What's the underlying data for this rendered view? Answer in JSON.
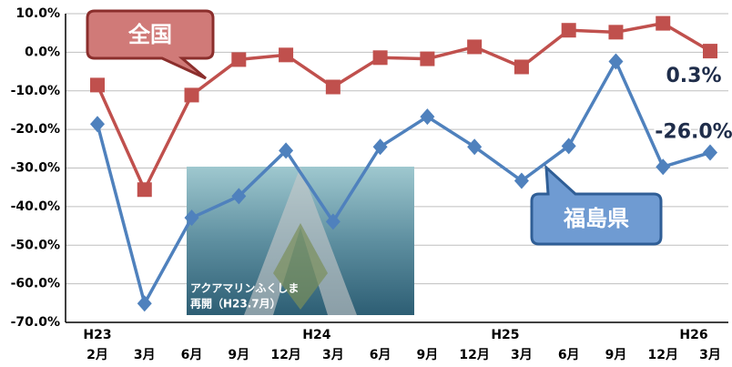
{
  "chart_data": {
    "type": "line",
    "categories": [
      "2月",
      "3月",
      "6月",
      "9月",
      "12月",
      "3月",
      "6月",
      "9月",
      "12月",
      "3月",
      "6月",
      "9月",
      "12月",
      "3月"
    ],
    "year_labels": [
      "H23",
      null,
      null,
      null,
      null,
      "H24",
      null,
      null,
      null,
      "H25",
      null,
      null,
      null,
      "H26"
    ],
    "series": [
      {
        "name": "全国",
        "color": "#c0504d",
        "marker": "square",
        "values": [
          -8.5,
          -35.6,
          -11.1,
          -1.9,
          -0.7,
          -9.0,
          -1.4,
          -1.7,
          1.4,
          -3.8,
          5.7,
          5.2,
          7.5,
          0.3
        ],
        "value_labels": [
          null,
          null,
          null,
          null,
          null,
          null,
          null,
          null,
          null,
          null,
          null,
          null,
          null,
          "0.3%"
        ]
      },
      {
        "name": "福島県",
        "color": "#4f81bd",
        "marker": "diamond",
        "values": [
          -18.6,
          -65.1,
          -42.9,
          -37.3,
          -25.5,
          -43.9,
          -24.5,
          -16.7,
          -24.5,
          -33.3,
          -24.3,
          -2.4,
          -29.7,
          -26.0
        ],
        "value_labels": [
          null,
          null,
          null,
          null,
          null,
          null,
          null,
          null,
          null,
          null,
          null,
          null,
          null,
          "-26.0%"
        ]
      }
    ],
    "ylim": [
      -70,
      10
    ],
    "yticks": [
      {
        "value": 10,
        "label": "10.0%"
      },
      {
        "value": 0,
        "label": "0.0%"
      },
      {
        "value": -10,
        "label": "-10.0%"
      },
      {
        "value": -20,
        "label": "-20.0%"
      },
      {
        "value": -30,
        "label": "-30.0%"
      },
      {
        "value": -40,
        "label": "-40.0%"
      },
      {
        "value": -50,
        "label": "-50.0%"
      },
      {
        "value": -60,
        "label": "-60.0%"
      },
      {
        "value": -70,
        "label": "-70.0%"
      }
    ],
    "grid": true,
    "photo_caption": [
      "アクアマリンふくしま",
      "再開（H23.7月）"
    ]
  }
}
